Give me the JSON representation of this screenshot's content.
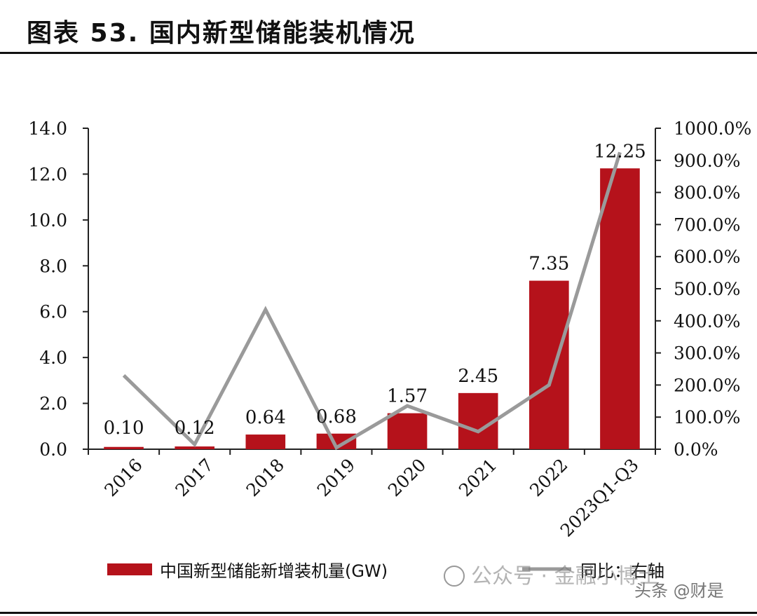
{
  "title": "图表 53. 国内新型储能装机情况",
  "chart_data": {
    "type": "bar",
    "categories": [
      "2016",
      "2017",
      "2018",
      "2019",
      "2020",
      "2021",
      "2022",
      "2023Q1-Q3"
    ],
    "series": [
      {
        "name": "中国新型储能新增装机量(GW)",
        "type": "bar",
        "axis": "left",
        "values": [
          0.1,
          0.12,
          0.64,
          0.68,
          1.57,
          2.45,
          7.35,
          12.25
        ],
        "labels": [
          "0.10",
          "0.12",
          "0.64",
          "0.68",
          "1.57",
          "2.45",
          "7.35",
          "12.25"
        ],
        "color": "#b5121b"
      },
      {
        "name": "同比：右轴",
        "type": "line",
        "axis": "right",
        "values": [
          230,
          15,
          435,
          5,
          135,
          55,
          200,
          925
        ],
        "unit": "%",
        "color": "#9a9a9a"
      }
    ],
    "y_left": {
      "ylim": [
        0,
        14
      ],
      "ticks": [
        "0.0",
        "2.0",
        "4.0",
        "6.0",
        "8.0",
        "10.0",
        "12.0",
        "14.0"
      ]
    },
    "y_right": {
      "ylim": [
        0,
        1000
      ],
      "ticks": [
        "0.0%",
        "100.0%",
        "200.0%",
        "300.0%",
        "400.0%",
        "500.0%",
        "600.0%",
        "700.0%",
        "800.0%",
        "900.0%",
        "1000.0%"
      ]
    },
    "legend_position": "bottom",
    "grid": false
  },
  "watermarks": [
    "公众号 · 金融小博士",
    "头条 @财是"
  ]
}
